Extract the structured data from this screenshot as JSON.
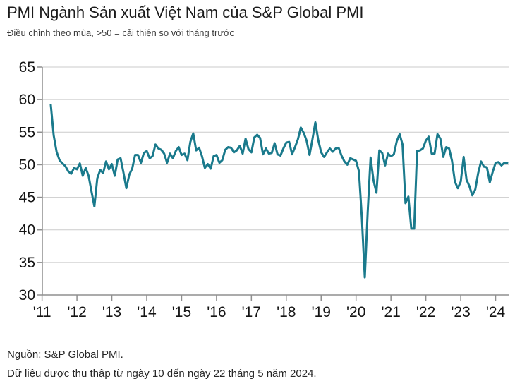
{
  "header": {
    "title": "PMI Ngành Sản xuất Việt Nam của S&P Global PMI",
    "subtitle": "Điều chỉnh theo mùa, >50 = cải thiện so với tháng trước"
  },
  "footer": {
    "source": "Nguồn: S&P Global PMI.",
    "note": "Dữ liệu được thu thập từ ngày 10 đến ngày 22 tháng 5 năm 2024."
  },
  "colors": {
    "line": "#1a7a8c",
    "grid": "#cbcbcb",
    "axis": "#8f8f8f",
    "tick_text": "#141414"
  },
  "chart_data": {
    "type": "line",
    "title": "PMI Ngành Sản xuất Việt Nam của S&P Global PMI",
    "subtitle": "Điều chỉnh theo mùa, >50 = cải thiện so với tháng trước",
    "frequency": "monthly",
    "x_start": "2011-04",
    "x_end": "2024-05",
    "x_tick_labels": [
      "'11",
      "'12",
      "'13",
      "'14",
      "'15",
      "'16",
      "'17",
      "'18",
      "'19",
      "'20",
      "'21",
      "'22",
      "'23",
      "'24"
    ],
    "y_ticks": [
      30,
      35,
      40,
      45,
      50,
      55,
      60,
      65
    ],
    "ylim": [
      30,
      65
    ],
    "grid": true,
    "legend": "none",
    "reference_level": 50,
    "series": [
      {
        "name": "Vietnam Manufacturing PMI",
        "values": [
          59.2,
          54.5,
          52.0,
          50.7,
          50.2,
          49.8,
          49.0,
          48.6,
          49.5,
          49.3,
          50.2,
          48.3,
          49.5,
          48.3,
          45.9,
          43.6,
          47.9,
          49.2,
          48.7,
          50.5,
          49.3,
          50.1,
          48.3,
          50.8,
          51.0,
          48.8,
          46.4,
          48.5,
          49.4,
          51.5,
          51.5,
          50.3,
          51.8,
          52.1,
          51.0,
          51.3,
          53.1,
          52.5,
          52.3,
          51.7,
          50.3,
          51.7,
          51.0,
          52.1,
          52.7,
          51.5,
          51.7,
          50.7,
          53.5,
          54.8,
          52.2,
          52.6,
          51.3,
          49.5,
          50.1,
          49.4,
          51.3,
          51.5,
          50.3,
          50.7,
          52.3,
          52.7,
          52.6,
          51.9,
          52.2,
          52.9,
          51.7,
          54.0,
          52.4,
          51.9,
          54.2,
          54.6,
          54.1,
          51.6,
          52.5,
          51.7,
          51.8,
          53.3,
          51.6,
          51.4,
          52.5,
          53.4,
          53.5,
          51.6,
          52.7,
          53.9,
          55.7,
          54.9,
          53.7,
          51.5,
          53.9,
          56.5,
          53.8,
          51.9,
          51.2,
          51.9,
          52.5,
          52.0,
          52.5,
          52.6,
          51.4,
          50.5,
          50.0,
          51.0,
          50.8,
          50.6,
          49.0,
          41.9,
          32.7,
          42.7,
          51.1,
          47.6,
          45.7,
          52.2,
          51.8,
          49.9,
          51.7,
          51.3,
          51.6,
          53.6,
          54.7,
          53.1,
          44.1,
          45.1,
          40.2,
          40.2,
          52.1,
          52.2,
          52.5,
          53.7,
          54.3,
          51.7,
          51.7,
          54.7,
          54.0,
          51.2,
          52.7,
          52.5,
          50.6,
          47.4,
          46.4,
          47.4,
          51.2,
          47.7,
          46.7,
          45.3,
          46.2,
          48.7,
          50.5,
          49.7,
          49.6,
          47.3,
          48.9,
          50.3,
          50.4,
          49.9,
          50.3,
          50.3
        ]
      }
    ]
  }
}
